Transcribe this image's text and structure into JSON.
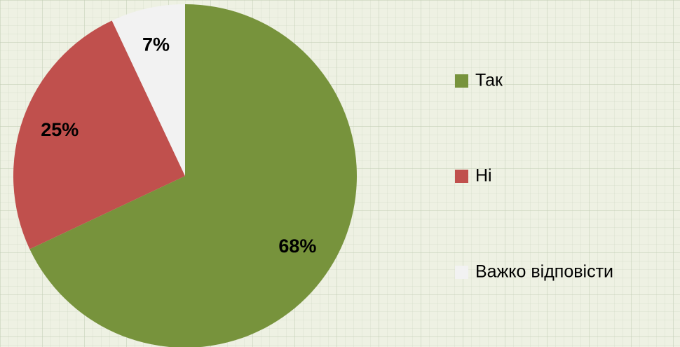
{
  "chart_data": {
    "type": "pie",
    "categories": [
      "Так",
      "Ні",
      "Важко відповісти"
    ],
    "values": [
      68,
      25,
      7
    ],
    "value_labels": [
      "68%",
      "25%",
      "7%"
    ],
    "colors": [
      "#77933c",
      "#c0504d",
      "#f2f2f2"
    ],
    "legend": "right"
  }
}
